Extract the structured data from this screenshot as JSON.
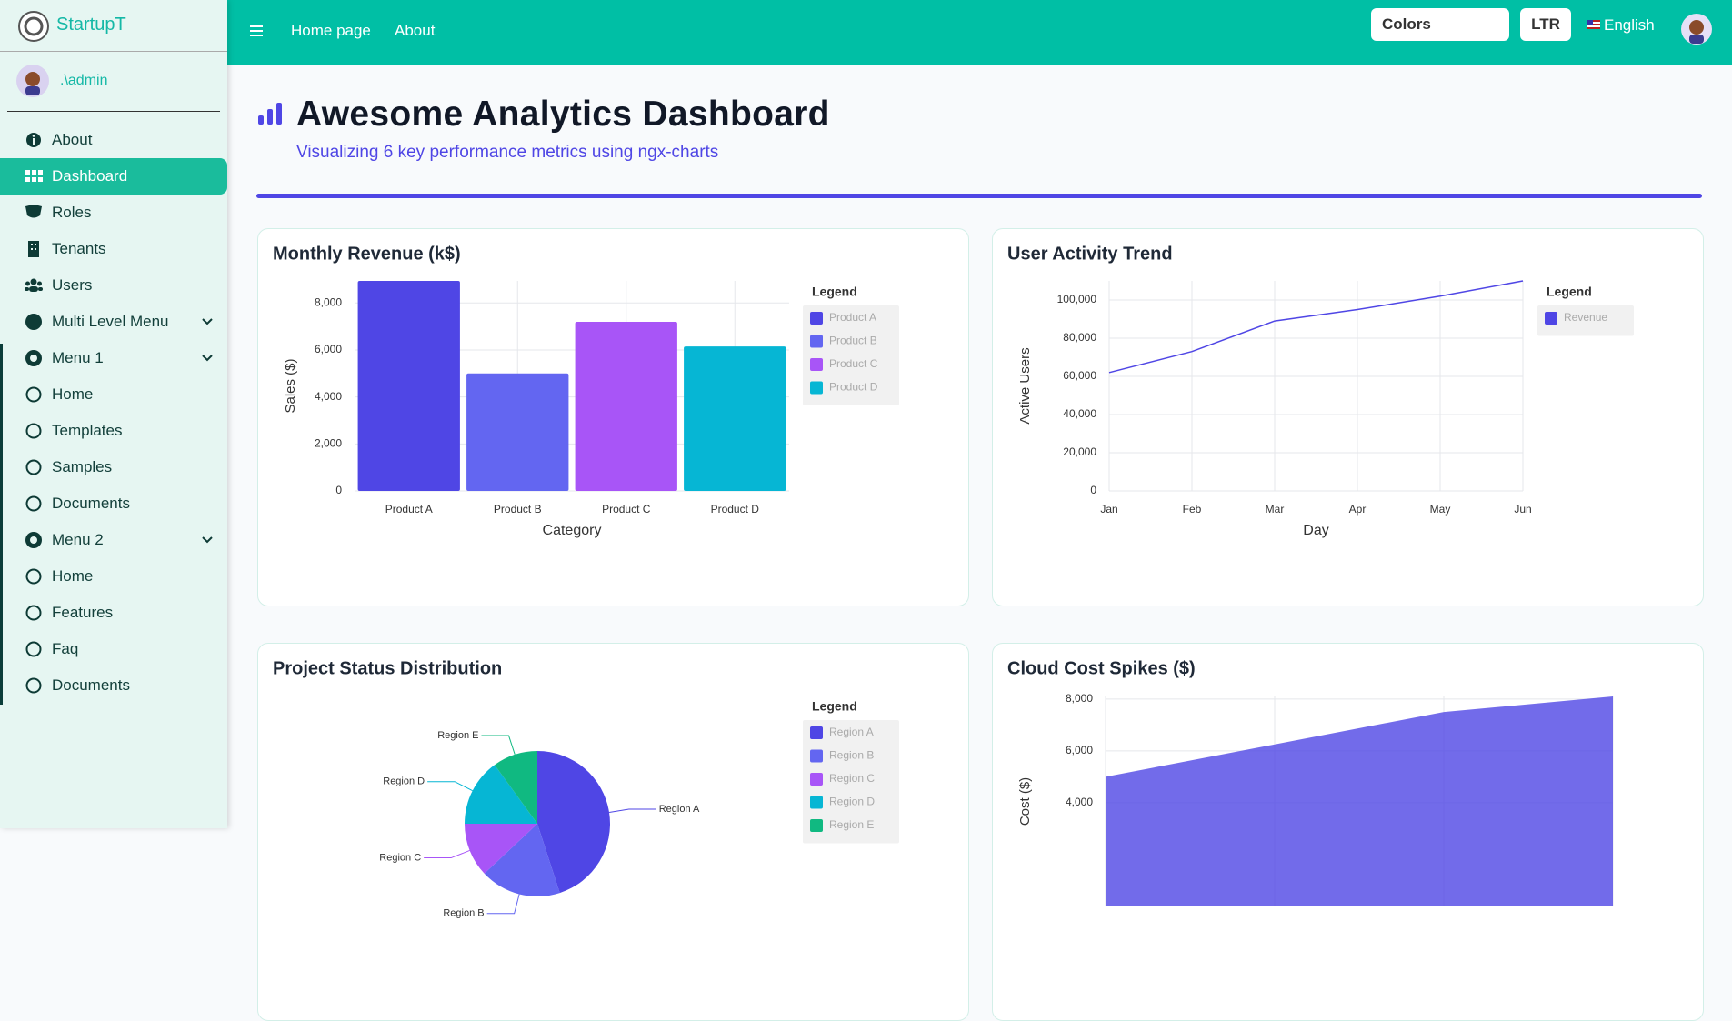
{
  "sidebar": {
    "brand": "StartupT",
    "user": ".\\admin",
    "menu": [
      "About",
      "Dashboard",
      "Roles",
      "Tenants",
      "Users",
      "Multi Level Menu",
      "Menu 1",
      "Home",
      "Templates",
      "Samples",
      "Documents",
      "Menu 2",
      "Home",
      "Features",
      "Faq",
      "Documents"
    ]
  },
  "topbar": {
    "nav": [
      "Home page",
      "About"
    ],
    "colors": "Colors",
    "direction": "LTR",
    "language": "English"
  },
  "header": {
    "title": "Awesome Analytics Dashboard",
    "subtitle": "Visualizing 6 key performance metrics using ngx-charts"
  },
  "chart_data": [
    {
      "type": "bar",
      "title": "Monthly Revenue (k$)",
      "x_label": "Category",
      "y_label": "Sales ($)",
      "legend_title": "Legend",
      "categories": [
        "Product A",
        "Product B",
        "Product C",
        "Product D"
      ],
      "values": [
        8940,
        5000,
        7200,
        6150
      ],
      "colors": [
        "#4f46e5",
        "#6366f1",
        "#a855f7",
        "#06b6d4"
      ],
      "ylim": [
        0,
        8940
      ],
      "yticks": [
        0,
        {
          "value": 2000,
          "label": "2,000"
        },
        {
          "value": 4000,
          "label": "4,000"
        },
        {
          "value": 6000,
          "label": "6,000"
        },
        {
          "value": 8000,
          "label": "8,000"
        }
      ],
      "grid": true
    },
    {
      "type": "line",
      "title": "User Activity Trend",
      "x_label": "Day",
      "y_label": "Active Users",
      "legend_title": "Legend",
      "categories": [
        "Jan",
        "Feb",
        "Mar",
        "Apr",
        "May",
        "Jun"
      ],
      "series": [
        {
          "name": "Revenue",
          "color": "#4f46e5",
          "values": [
            62000,
            73000,
            89000,
            95000,
            102000,
            110000
          ]
        }
      ],
      "ylim": [
        0,
        110000
      ],
      "yticks": [
        0,
        {
          "value": 20000,
          "label": "20,000"
        },
        {
          "value": 40000,
          "label": "40,000"
        },
        {
          "value": 60000,
          "label": "60,000"
        },
        {
          "value": 80000,
          "label": "80,000"
        },
        {
          "value": 100000,
          "label": "100,000"
        }
      ],
      "grid": true
    },
    {
      "type": "pie",
      "title": "Project Status Distribution",
      "legend_title": "Legend",
      "categories": [
        "Region A",
        "Region B",
        "Region C",
        "Region D",
        "Region E"
      ],
      "values": [
        45,
        18,
        12,
        15,
        10
      ],
      "colors": [
        "#4f46e5",
        "#6366f1",
        "#a855f7",
        "#06b6d4",
        "#10b981"
      ]
    },
    {
      "type": "area",
      "title": "Cloud Cost Spikes ($)",
      "y_label": "Cost ($)",
      "values": [
        5000,
        6250,
        7500,
        8100
      ],
      "color": "#4f46e5",
      "ylim": [
        0,
        8100
      ],
      "yticks": [
        {
          "value": 4000,
          "label": "4,000"
        },
        {
          "value": 6000,
          "label": "6,000"
        },
        {
          "value": 8000,
          "label": "8,000"
        }
      ],
      "grid": true
    }
  ]
}
